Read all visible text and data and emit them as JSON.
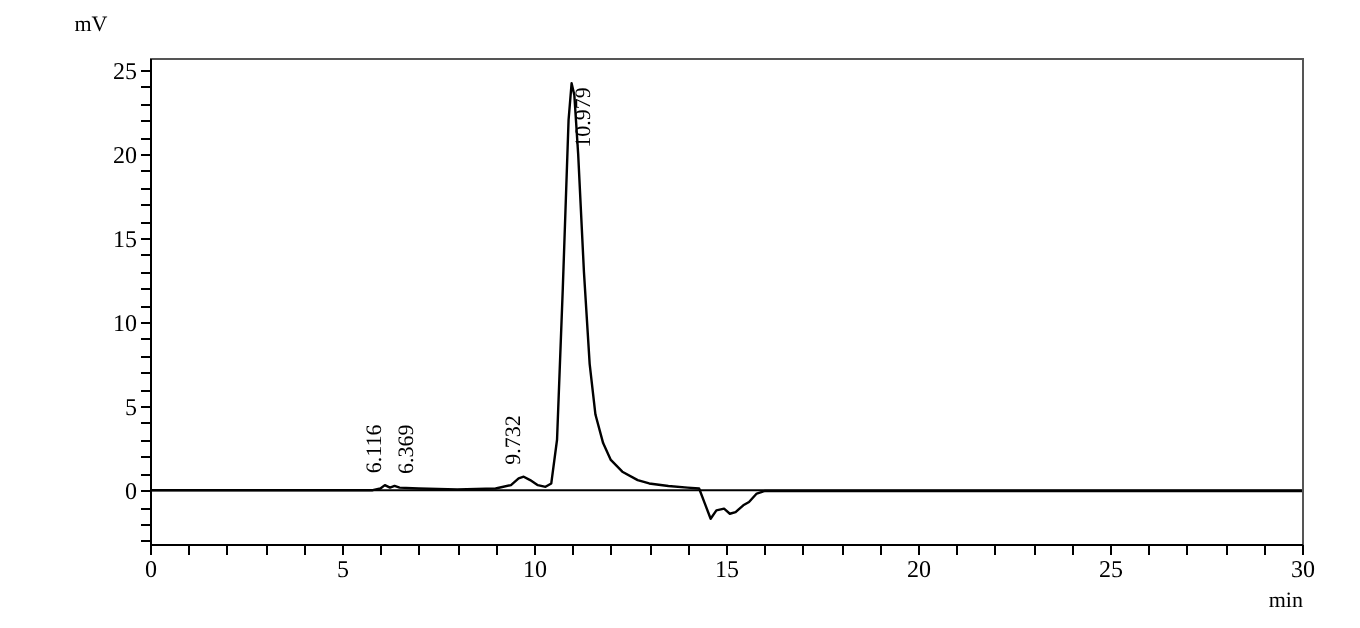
{
  "chart_data": {
    "type": "line",
    "xlabel": "min",
    "ylabel": "mV",
    "x": [
      0,
      3,
      5.8,
      6.0,
      6.116,
      6.25,
      6.369,
      6.5,
      7,
      8,
      9,
      9.4,
      9.6,
      9.732,
      9.9,
      10.1,
      10.3,
      10.45,
      10.6,
      10.75,
      10.9,
      10.979,
      11.05,
      11.15,
      11.3,
      11.45,
      11.6,
      11.8,
      12,
      12.3,
      12.7,
      13,
      13.5,
      14,
      14.3,
      14.45,
      14.6,
      14.75,
      14.95,
      15.1,
      15.25,
      15.45,
      15.6,
      15.8,
      16,
      16.3,
      18,
      22,
      26,
      30
    ],
    "series": [
      {
        "color": "#000000",
        "values": [
          0,
          0,
          0,
          0.1,
          0.3,
          0.15,
          0.25,
          0.15,
          0.1,
          0.05,
          0.1,
          0.3,
          0.7,
          0.8,
          0.6,
          0.3,
          0.2,
          0.4,
          3,
          12,
          22,
          24.2,
          23.5,
          20,
          13,
          7.5,
          4.5,
          2.8,
          1.8,
          1.1,
          0.6,
          0.4,
          0.25,
          0.15,
          0.1,
          -0.8,
          -1.7,
          -1.2,
          -1.1,
          -1.4,
          -1.3,
          -0.9,
          -0.7,
          -0.2,
          -0.05,
          -0.05,
          -0.05,
          -0.05,
          -0.05,
          -0.05
        ]
      }
    ],
    "xlim": [
      0,
      30
    ],
    "ylim": [
      -3.2,
      25.7
    ],
    "xticks": [
      0,
      {
        "value": 1,
        "label": null
      },
      {
        "value": 2,
        "label": null
      },
      {
        "value": 3,
        "label": null
      },
      {
        "value": 4,
        "label": null
      },
      5,
      {
        "value": 6,
        "label": null
      },
      {
        "value": 7,
        "label": null
      },
      {
        "value": 8,
        "label": null
      },
      {
        "value": 9,
        "label": null
      },
      10,
      {
        "value": 11,
        "label": null
      },
      {
        "value": 12,
        "label": null
      },
      {
        "value": 13,
        "label": null
      },
      {
        "value": 14,
        "label": null
      },
      15,
      {
        "value": 16,
        "label": null
      },
      {
        "value": 17,
        "label": null
      },
      {
        "value": 18,
        "label": null
      },
      {
        "value": 19,
        "label": null
      },
      20,
      {
        "value": 21,
        "label": null
      },
      {
        "value": 22,
        "label": null
      },
      {
        "value": 23,
        "label": null
      },
      {
        "value": 24,
        "label": null
      },
      25,
      {
        "value": 26,
        "label": null
      },
      {
        "value": 27,
        "label": null
      },
      {
        "value": 28,
        "label": null
      },
      {
        "value": 29,
        "label": null
      },
      30
    ],
    "yticks": [
      {
        "value": -3,
        "label": null
      },
      {
        "value": -2,
        "label": null
      },
      {
        "value": -1,
        "label": null
      },
      0,
      {
        "value": 1,
        "label": null
      },
      {
        "value": 2,
        "label": null
      },
      {
        "value": 3,
        "label": null
      },
      {
        "value": 4,
        "label": null
      },
      5,
      {
        "value": 6,
        "label": null
      },
      {
        "value": 7,
        "label": null
      },
      {
        "value": 8,
        "label": null
      },
      {
        "value": 9,
        "label": null
      },
      10,
      {
        "value": 11,
        "label": null
      },
      {
        "value": 12,
        "label": null
      },
      {
        "value": 13,
        "label": null
      },
      {
        "value": 14,
        "label": null
      },
      15,
      {
        "value": 16,
        "label": null
      },
      {
        "value": 17,
        "label": null
      },
      {
        "value": 18,
        "label": null
      },
      {
        "value": 19,
        "label": null
      },
      20,
      {
        "value": 21,
        "label": null
      },
      {
        "value": 22,
        "label": null
      },
      {
        "value": 23,
        "label": null
      },
      {
        "value": 24,
        "label": null
      },
      25
    ],
    "ref_lines": [
      {
        "axis": "y",
        "value": 0,
        "color": "#000000"
      }
    ],
    "annotations": [
      {
        "text": "6.116",
        "x": 6.116,
        "y": 0.3
      },
      {
        "text": "6.369",
        "x": 6.369,
        "y": 0.25
      },
      {
        "text": "9.732",
        "x": 9.732,
        "y": 0.8
      },
      {
        "text": "10.979",
        "x": 10.979,
        "y": 24.2
      }
    ],
    "grid": false,
    "marker": "none",
    "line_style": "solid"
  }
}
